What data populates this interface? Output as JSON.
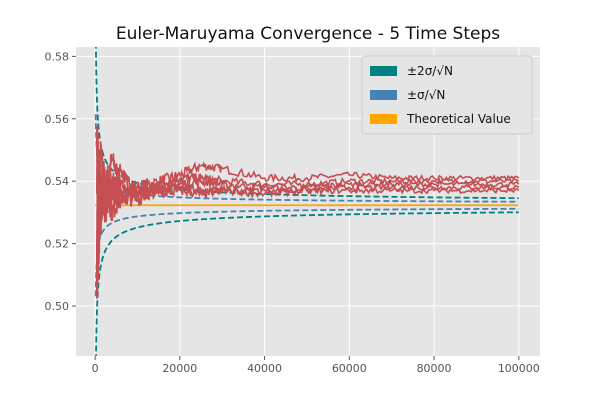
{
  "chart_data": {
    "type": "line",
    "title": "Euler-Maruyama Convergence - 5 Time Steps",
    "xlabel": "",
    "ylabel": "",
    "xlim": [
      -4500,
      105000
    ],
    "ylim": [
      0.484,
      0.583
    ],
    "x_ticks": [
      0,
      20000,
      40000,
      60000,
      80000,
      100000
    ],
    "y_ticks": [
      0.5,
      0.52,
      0.54,
      0.56,
      0.58
    ],
    "x_tick_labels": [
      "0",
      "20000",
      "40000",
      "60000",
      "80000",
      "100000"
    ],
    "y_tick_labels": [
      "0.50",
      "0.52",
      "0.54",
      "0.56",
      "0.58"
    ],
    "grid": true,
    "legend": {
      "position": "top-right",
      "entries": [
        {
          "label": "±2σ/√N",
          "color": "#008080"
        },
        {
          "label": "±σ/√N",
          "color": "#4682b4"
        },
        {
          "label": "Theoretical Value",
          "color": "#ffa500"
        }
      ]
    },
    "theoretical_value": 0.5323,
    "band_sigma": 0.00113,
    "band_2sigma_start_x": 100,
    "band_1sigma_start_x": 150,
    "series": [
      {
        "color": "#c44e52",
        "x": [
          400,
          1200,
          2500,
          4000,
          6000,
          10000,
          15000,
          20000,
          25000,
          30000,
          40000,
          50000,
          60000,
          70000,
          80000,
          90000,
          100000
        ],
        "values": [
          0.512,
          0.548,
          0.539,
          0.547,
          0.54,
          0.538,
          0.54,
          0.542,
          0.545,
          0.544,
          0.541,
          0.541,
          0.542,
          0.541,
          0.541,
          0.541,
          0.541
        ]
      },
      {
        "color": "#c44e52",
        "x": [
          400,
          1200,
          2500,
          4000,
          6000,
          10000,
          15000,
          20000,
          25000,
          30000,
          40000,
          50000,
          60000,
          70000,
          80000,
          90000,
          100000
        ],
        "values": [
          0.536,
          0.527,
          0.541,
          0.536,
          0.543,
          0.536,
          0.539,
          0.541,
          0.541,
          0.54,
          0.539,
          0.539,
          0.54,
          0.54,
          0.54,
          0.54,
          0.54
        ]
      },
      {
        "color": "#c44e52",
        "x": [
          400,
          1200,
          2500,
          4000,
          6000,
          10000,
          15000,
          20000,
          25000,
          30000,
          40000,
          50000,
          60000,
          70000,
          80000,
          90000,
          100000
        ],
        "values": [
          0.505,
          0.53,
          0.538,
          0.53,
          0.535,
          0.534,
          0.538,
          0.539,
          0.54,
          0.539,
          0.538,
          0.538,
          0.539,
          0.539,
          0.539,
          0.539,
          0.539
        ]
      },
      {
        "color": "#c44e52",
        "x": [
          400,
          1200,
          2500,
          4000,
          6000,
          10000,
          15000,
          20000,
          25000,
          30000,
          40000,
          50000,
          60000,
          70000,
          80000,
          90000,
          100000
        ],
        "values": [
          0.55,
          0.542,
          0.536,
          0.54,
          0.536,
          0.537,
          0.537,
          0.538,
          0.537,
          0.537,
          0.537,
          0.537,
          0.538,
          0.538,
          0.538,
          0.538,
          0.538
        ]
      },
      {
        "color": "#c44e52",
        "x": [
          400,
          1200,
          2500,
          4000,
          6000,
          10000,
          15000,
          20000,
          25000,
          30000,
          40000,
          50000,
          60000,
          70000,
          80000,
          90000,
          100000
        ],
        "values": [
          0.52,
          0.534,
          0.531,
          0.536,
          0.534,
          0.536,
          0.536,
          0.537,
          0.536,
          0.537,
          0.536,
          0.537,
          0.537,
          0.537,
          0.537,
          0.537,
          0.537
        ]
      }
    ]
  }
}
